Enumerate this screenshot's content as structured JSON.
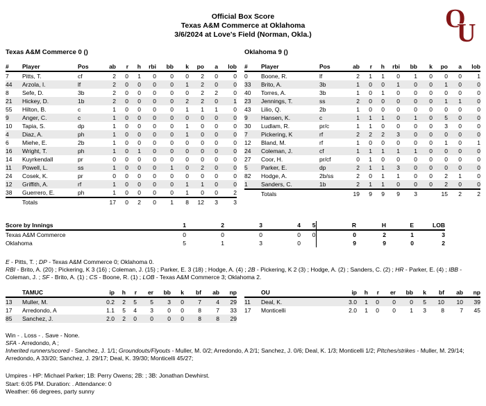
{
  "header": {
    "title_line1": "Official Box Score",
    "title_line2": "Texas A&M Commerce at Oklahoma",
    "title_line3": "3/6/2024 at Love's Field (Norman, Okla.)",
    "logo": {
      "o": "O",
      "u": "U",
      "color": "#841617"
    }
  },
  "batting": {
    "columns": [
      "#",
      "Player",
      "Pos",
      "ab",
      "r",
      "h",
      "rbi",
      "bb",
      "k",
      "po",
      "a",
      "lob"
    ],
    "away": {
      "team_line": "Texas A&M Commerce 0 ()",
      "players": [
        [
          "7",
          "Pitts, T.",
          "cf",
          "2",
          "0",
          "1",
          "0",
          "0",
          "0",
          "2",
          "0",
          "0"
        ],
        [
          "44",
          "Arzola, I.",
          "lf",
          "2",
          "0",
          "0",
          "0",
          "0",
          "1",
          "2",
          "0",
          "0"
        ],
        [
          "8",
          "Sefe, D.",
          "3b",
          "2",
          "0",
          "0",
          "0",
          "0",
          "0",
          "2",
          "2",
          "0"
        ],
        [
          "21",
          "Hickey, D.",
          "1b",
          "2",
          "0",
          "0",
          "0",
          "0",
          "2",
          "2",
          "0",
          "1"
        ],
        [
          "55",
          "Hilton, B.",
          "c",
          "1",
          "0",
          "0",
          "0",
          "0",
          "1",
          "1",
          "1",
          "0"
        ],
        [
          "9",
          "Anger, C.",
          "c",
          "1",
          "0",
          "0",
          "0",
          "0",
          "0",
          "0",
          "0",
          "0"
        ],
        [
          "10",
          "Tapia, S.",
          "dp",
          "1",
          "0",
          "0",
          "0",
          "0",
          "1",
          "0",
          "0",
          "0"
        ],
        [
          "4",
          "Diaz, A.",
          "ph",
          "1",
          "0",
          "0",
          "0",
          "0",
          "1",
          "0",
          "0",
          "0"
        ],
        [
          "6",
          "Miehe, E.",
          "2b",
          "1",
          "0",
          "0",
          "0",
          "0",
          "0",
          "0",
          "0",
          "0"
        ],
        [
          "16",
          "Wright, T.",
          "ph",
          "1",
          "0",
          "1",
          "0",
          "0",
          "0",
          "0",
          "0",
          "0"
        ],
        [
          "14",
          "Kuyrkendall",
          "pr",
          "0",
          "0",
          "0",
          "0",
          "0",
          "0",
          "0",
          "0",
          "0"
        ],
        [
          "11",
          "Powell, L.",
          "ss",
          "1",
          "0",
          "0",
          "0",
          "1",
          "0",
          "2",
          "0",
          "0"
        ],
        [
          "24",
          "Cosek, K.",
          "pr",
          "0",
          "0",
          "0",
          "0",
          "0",
          "0",
          "0",
          "0",
          "0"
        ],
        [
          "12",
          "Griffith, A.",
          "rf",
          "1",
          "0",
          "0",
          "0",
          "0",
          "1",
          "1",
          "0",
          "0"
        ],
        [
          "38",
          "Guerrero, E.",
          "ph",
          "1",
          "0",
          "0",
          "0",
          "0",
          "1",
          "0",
          "0",
          "2"
        ]
      ],
      "totals": {
        "label": "Totals",
        "stats": [
          "17",
          "0",
          "2",
          "0",
          "1",
          "8",
          "12",
          "3",
          "3"
        ]
      }
    },
    "home": {
      "team_line": "Oklahoma 9 ()",
      "players": [
        [
          "0",
          "Boone, R.",
          "lf",
          "2",
          "1",
          "1",
          "0",
          "1",
          "0",
          "0",
          "0",
          "1"
        ],
        [
          "33",
          "Brito, A.",
          "3b",
          "1",
          "0",
          "0",
          "1",
          "0",
          "0",
          "1",
          "0",
          "0"
        ],
        [
          "40",
          "Torres, A.",
          "3b",
          "1",
          "0",
          "1",
          "0",
          "0",
          "0",
          "0",
          "0",
          "0"
        ],
        [
          "23",
          "Jennings, T.",
          "ss",
          "2",
          "0",
          "0",
          "0",
          "0",
          "0",
          "1",
          "1",
          "0"
        ],
        [
          "43",
          "Lilio, Q.",
          "2b",
          "1",
          "0",
          "0",
          "0",
          "0",
          "0",
          "0",
          "0",
          "0"
        ],
        [
          "9",
          "Hansen, K.",
          "c",
          "1",
          "1",
          "1",
          "0",
          "1",
          "0",
          "5",
          "0",
          "0"
        ],
        [
          "30",
          "Ludlam, R.",
          "pr/c",
          "1",
          "1",
          "0",
          "0",
          "0",
          "0",
          "3",
          "0",
          "0"
        ],
        [
          "7",
          "Pickering, K",
          "rf",
          "2",
          "2",
          "2",
          "3",
          "0",
          "0",
          "0",
          "0",
          "0"
        ],
        [
          "12",
          "Bland, M.",
          "rf",
          "1",
          "0",
          "0",
          "0",
          "0",
          "0",
          "1",
          "0",
          "1"
        ],
        [
          "24",
          "Coleman, J.",
          "cf",
          "1",
          "1",
          "1",
          "1",
          "1",
          "0",
          "0",
          "0",
          "0"
        ],
        [
          "27",
          "Coor, H.",
          "pr/cf",
          "0",
          "1",
          "0",
          "0",
          "0",
          "0",
          "0",
          "0",
          "0"
        ],
        [
          "5",
          "Parker, E.",
          "dp",
          "2",
          "1",
          "1",
          "3",
          "0",
          "0",
          "0",
          "0",
          "0"
        ],
        [
          "82",
          "Hodge, A.",
          "2b/ss",
          "2",
          "0",
          "1",
          "1",
          "0",
          "0",
          "2",
          "1",
          "0"
        ],
        [
          "1",
          "Sanders, C.",
          "1b",
          "2",
          "1",
          "1",
          "0",
          "0",
          "0",
          "2",
          "0",
          "0"
        ]
      ],
      "totals": {
        "label": "Totals",
        "stats": [
          "19",
          "9",
          "9",
          "9",
          "3",
          "",
          "15",
          "2",
          "2"
        ]
      }
    }
  },
  "innings": {
    "label": "Score by Innings",
    "inning_headers": [
      "1",
      "2",
      "3",
      "4",
      "5"
    ],
    "summary_headers": [
      "R",
      "H",
      "E",
      "LOB"
    ],
    "rows": [
      {
        "team": "Texas A&M Commerce",
        "innings": [
          "0",
          "0",
          "0",
          "0",
          "0"
        ],
        "summary": [
          "0",
          "2",
          "1",
          "3"
        ]
      },
      {
        "team": "Oklahoma",
        "innings": [
          "5",
          "1",
          "3",
          "0",
          ""
        ],
        "summary": [
          "9",
          "9",
          "0",
          "2"
        ]
      }
    ]
  },
  "batting_notes": [
    [
      {
        "i": true,
        "t": "E"
      },
      {
        "i": false,
        "t": " - Pitts, T. ; "
      },
      {
        "i": true,
        "t": "DP"
      },
      {
        "i": false,
        "t": " - Texas A&M Commerce 0; Oklahoma 0."
      }
    ],
    [
      {
        "i": true,
        "t": "RBI"
      },
      {
        "i": false,
        "t": " - Brito, A. (20) ; Pickering, K 3 (16) ; Coleman, J. (15) ; Parker, E. 3 (18) ; Hodge, A. (4) ; "
      },
      {
        "i": true,
        "t": "2B"
      },
      {
        "i": false,
        "t": " - Pickering, K 2 (3) ; Hodge, A. (2) ; Sanders, C. (2) ; "
      },
      {
        "i": true,
        "t": "HR"
      },
      {
        "i": false,
        "t": " - Parker, E. (4) ; "
      },
      {
        "i": true,
        "t": "IBB"
      },
      {
        "i": false,
        "t": " - Coleman, J. ; "
      },
      {
        "i": true,
        "t": "SF"
      },
      {
        "i": false,
        "t": " - Brito, A. (1) ; "
      },
      {
        "i": true,
        "t": "CS"
      },
      {
        "i": false,
        "t": " - Boone, R. (1) ; "
      },
      {
        "i": true,
        "t": "LOB"
      },
      {
        "i": false,
        "t": " - Texas A&M Commerce 3; Oklahoma 2."
      }
    ]
  ],
  "pitching": {
    "columns": [
      "ip",
      "h",
      "r",
      "er",
      "bb",
      "k",
      "bf",
      "ab",
      "np"
    ],
    "away": {
      "team": "TAMUC",
      "rows": [
        [
          "13",
          "Muller, M.",
          "0.2",
          "2",
          "5",
          "5",
          "3",
          "0",
          "7",
          "4",
          "29"
        ],
        [
          "17",
          "Arredondo, A",
          "1.1",
          "5",
          "4",
          "3",
          "0",
          "0",
          "8",
          "7",
          "33"
        ],
        [
          "85",
          "Sanchez, J.",
          "2.0",
          "2",
          "0",
          "0",
          "0",
          "0",
          "8",
          "8",
          "29"
        ]
      ]
    },
    "home": {
      "team": "OU",
      "rows": [
        [
          "11",
          "Deal, K.",
          "3.0",
          "1",
          "0",
          "0",
          "0",
          "5",
          "10",
          "10",
          "39"
        ],
        [
          "17",
          "Monticelli",
          "2.0",
          "1",
          "0",
          "0",
          "1",
          "3",
          "8",
          "7",
          "45"
        ]
      ]
    }
  },
  "pitching_notes": [
    [
      {
        "i": false,
        "t": "Win - . Loss - . Save - None."
      }
    ],
    [
      {
        "i": true,
        "t": "SFA"
      },
      {
        "i": false,
        "t": " - Arredondo, A ;"
      }
    ],
    [
      {
        "i": true,
        "t": "Inherited runners/scored"
      },
      {
        "i": false,
        "t": " - Sanchez, J. 1/1; "
      },
      {
        "i": true,
        "t": "Groundouts/Flyouts"
      },
      {
        "i": false,
        "t": " - Muller, M. 0/2; Arredondo, A 2/1; Sanchez, J. 0/6; Deal, K. 1/3; Monticelli 1/2; "
      },
      {
        "i": true,
        "t": "PItches/strikes"
      },
      {
        "i": false,
        "t": " - Muller, M. 29/14; Arredondo, A 33/20; Sanchez, J. 29/17; Deal, K. 39/30; Monticelli 45/27;"
      }
    ]
  ],
  "footer": {
    "umpires": "Umpires - HP: Michael Parker; 1B: Perry Owens; 2B: ; 3B: Jonathan Dewhirst.",
    "start": "Start: 6:05 PM. Duration: . Attendance: 0",
    "weather": "Weather: 66 degrees, party sunny"
  }
}
